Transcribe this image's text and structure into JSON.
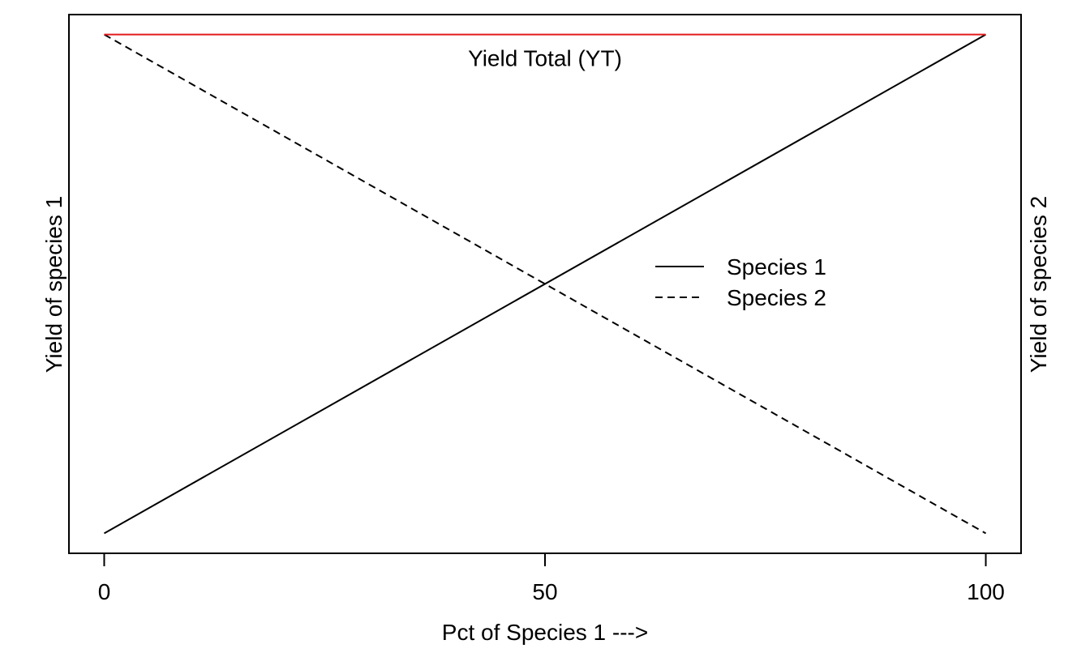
{
  "chart_data": {
    "type": "line",
    "xlabel": "Pct of Species 1 --->",
    "ylabel_left": "Yield of species 1",
    "ylabel_right": "Yield of species 2",
    "xlim": [
      -4,
      104
    ],
    "ylim": [
      -0.04,
      1.04
    ],
    "x_ticks": [
      0,
      50,
      100
    ],
    "x_tick_labels": [
      "0",
      "50",
      "100"
    ],
    "grid": false,
    "legend_position": "center-right",
    "series": [
      {
        "name": "Species 1",
        "line_style": "solid",
        "color": "#000000",
        "x": [
          0,
          100
        ],
        "y": [
          0,
          1
        ]
      },
      {
        "name": "Species 2",
        "line_style": "dashed",
        "color": "#000000",
        "x": [
          0,
          100
        ],
        "y": [
          1,
          0
        ]
      },
      {
        "line_style": "solid",
        "color": "#e41a1c",
        "x": [
          0,
          100
        ],
        "y": [
          1,
          1
        ]
      }
    ],
    "annotations": [
      {
        "text": "Yield Total (YT)",
        "x": 50,
        "y": 0.953
      }
    ]
  }
}
